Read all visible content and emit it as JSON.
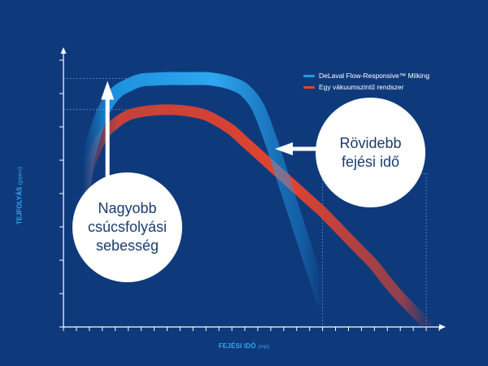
{
  "chart_data": {
    "type": "line",
    "title": "",
    "xlabel": "FEJÉSI IDŐ",
    "xlabel_unit": "(mp)",
    "ylabel": "TEJFOLYÁS",
    "ylabel_unit": "(g/perc)",
    "xlim": [
      0,
      29
    ],
    "ylim": [
      0,
      8
    ],
    "grid": false,
    "legend_position": "top-right",
    "series": [
      {
        "name": "DeLaval Flow-Responsive™ Milking",
        "color": "#1e9ae6",
        "x": [
          1.5,
          2,
          3,
          4,
          5,
          6,
          7,
          8,
          9,
          10,
          11,
          12,
          13,
          14,
          15,
          16,
          17,
          18,
          19,
          20
        ],
        "y": [
          4.0,
          5.2,
          6.4,
          7.0,
          7.25,
          7.4,
          7.43,
          7.45,
          7.45,
          7.45,
          7.45,
          7.4,
          7.3,
          7.1,
          6.6,
          5.6,
          4.4,
          3.2,
          2.0,
          0.8
        ]
      },
      {
        "name": "Egy vákuumszintű rendszer",
        "color": "#e2432f",
        "x": [
          1.5,
          2,
          3,
          4,
          5,
          6,
          7,
          8,
          9,
          10,
          11,
          12,
          13,
          14,
          15,
          16,
          17,
          18,
          19,
          20,
          21,
          22,
          23,
          24,
          25,
          26,
          27,
          28
        ],
        "y": [
          3.7,
          4.8,
          5.7,
          6.1,
          6.35,
          6.45,
          6.5,
          6.52,
          6.5,
          6.45,
          6.35,
          6.15,
          5.9,
          5.55,
          5.2,
          4.85,
          4.5,
          4.15,
          3.8,
          3.45,
          3.05,
          2.65,
          2.25,
          1.85,
          1.35,
          0.9,
          0.5,
          0.1
        ]
      }
    ],
    "annotations": [
      {
        "text": "Nagyobb\ncsúcsfolyási\nsebesség",
        "arrow": "up"
      },
      {
        "text": "Rövidebb\nfejési idő",
        "arrow": "left"
      }
    ]
  },
  "colors": {
    "background": "#0e3a7c",
    "axis": "#ffffff",
    "label": "#3aa6ee",
    "bubble": "#ffffff",
    "bubble_text": "#1b3c6e"
  }
}
